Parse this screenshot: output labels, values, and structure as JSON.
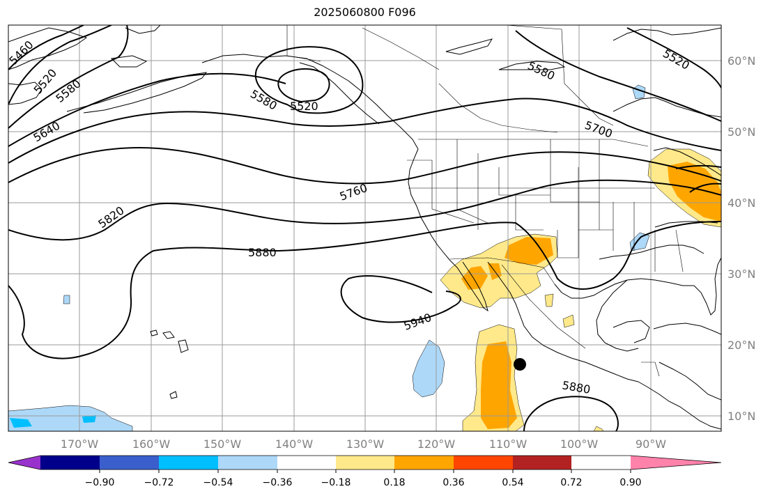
{
  "title": "2025060800 F096",
  "lat_labels": [
    "60°N",
    "50°N",
    "40°N",
    "30°N",
    "20°N",
    "10°N"
  ],
  "lon_labels": [
    "170°W",
    "160°W",
    "150°W",
    "140°W",
    "130°W",
    "120°W",
    "110°W",
    "100°W",
    "90°W"
  ],
  "contour_labels": [
    "5460",
    "5520",
    "5580",
    "5640",
    "5520",
    "5580",
    "5580",
    "5700",
    "5520",
    "5760",
    "5820",
    "5880",
    "5940",
    "5880"
  ],
  "colorbar": {
    "ticks": [
      "−0.90",
      "−0.72",
      "−0.54",
      "−0.36",
      "−0.18",
      "0.18",
      "0.36",
      "0.54",
      "0.72",
      "0.90"
    ],
    "colors": [
      "#9932cc",
      "#00008b",
      "#3a5fcd",
      "#00bfff",
      "#add8f8",
      "#ffffff",
      "#ffe98a",
      "#ffa500",
      "#ff4500",
      "#b22222",
      "#ff82ab"
    ]
  },
  "marker": {
    "label": "storm-center-marker",
    "color": "#000000"
  }
}
